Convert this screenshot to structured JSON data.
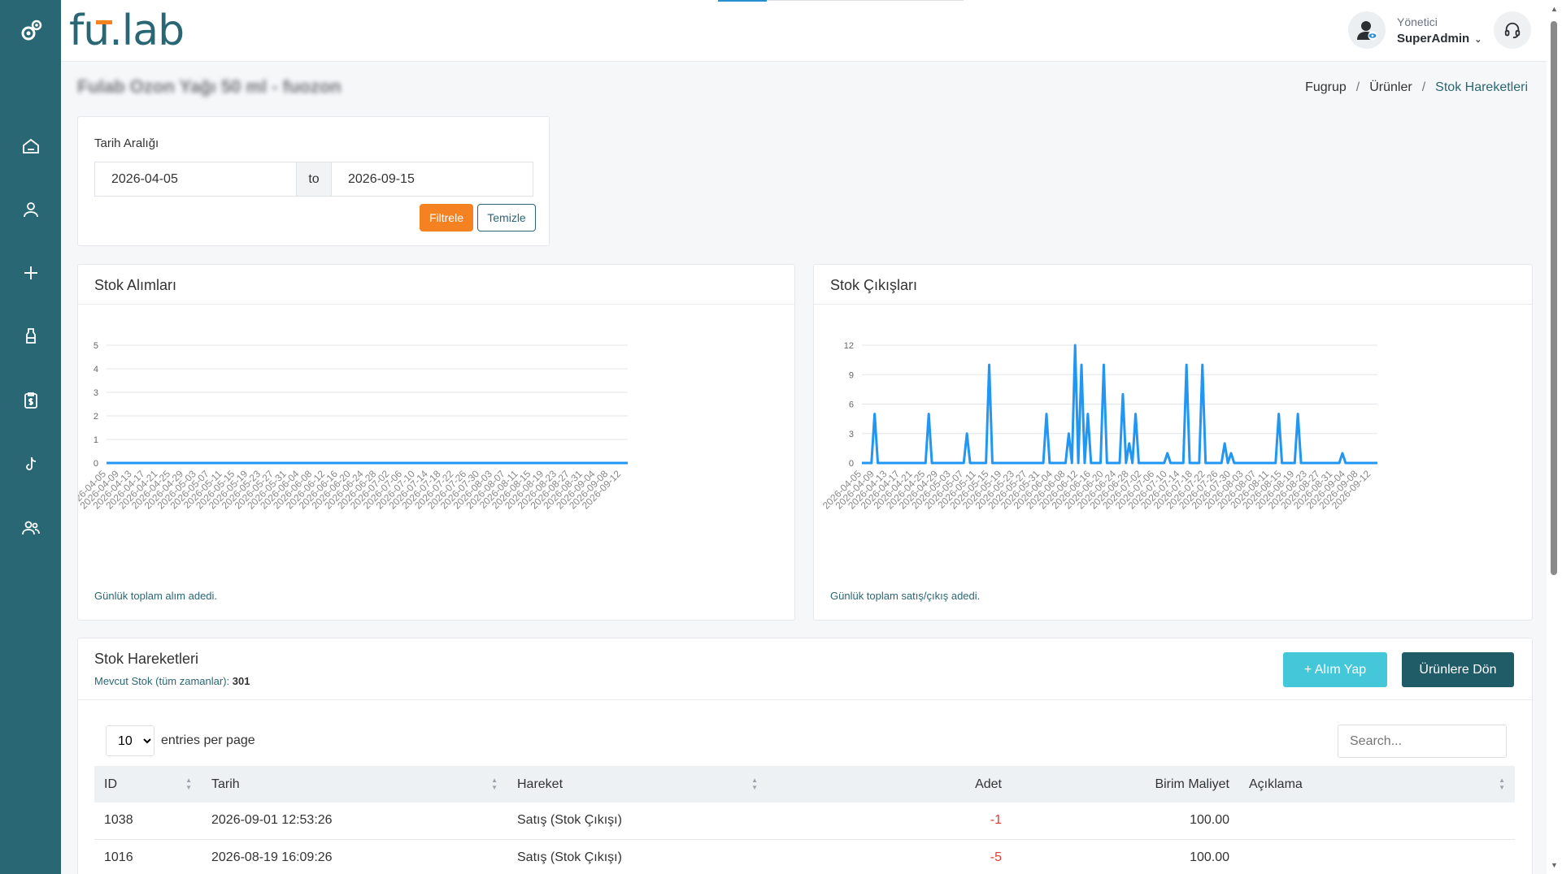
{
  "brand": {
    "text_a": "fu",
    "text_b": ".lab"
  },
  "user": {
    "role": "Yönetici",
    "name": "SuperAdmin"
  },
  "page": {
    "title": "Fulab Ozon Yağı 50 ml - fuozon"
  },
  "breadcrumb": [
    {
      "label": "Fugrup"
    },
    {
      "label": "Ürünler"
    },
    {
      "label": "Stok Hareketleri"
    }
  ],
  "filter": {
    "label": "Tarih Aralığı",
    "start": "2026-04-05",
    "to": "to",
    "end": "2026-09-15",
    "filter_btn": "Filtrele",
    "clear_btn": "Temizle"
  },
  "charts": {
    "left": {
      "title": "Stok Alımları",
      "note": "Günlük toplam alım adedi."
    },
    "right": {
      "title": "Stok Çıkışları",
      "note": "Günlük toplam satış/çıkış adedi."
    }
  },
  "chart_data": [
    {
      "type": "line",
      "title": "Stok Alımları",
      "x_start": "2026-04-05",
      "x_end": "2026-09-14",
      "x_tick_labels": [
        "2026-04-05",
        "2026-04-09",
        "2026-04-13",
        "2026-04-17",
        "2026-04-21",
        "2026-04-25",
        "2026-04-29",
        "2026-05-03",
        "2026-05-07",
        "2026-05-11",
        "2026-05-15",
        "2026-05-19",
        "2026-05-23",
        "2026-05-27",
        "2026-05-31",
        "2026-06-04",
        "2026-06-08",
        "2026-06-12",
        "2026-06-16",
        "2026-06-20",
        "2026-06-24",
        "2026-06-28",
        "2026-07-02",
        "2026-07-06",
        "2026-07-10",
        "2026-07-14",
        "2026-07-18",
        "2026-07-22",
        "2026-07-26",
        "2026-07-30",
        "2026-08-03",
        "2026-08-07",
        "2026-08-11",
        "2026-08-15",
        "2026-08-19",
        "2026-08-23",
        "2026-08-27",
        "2026-08-31",
        "2026-09-04",
        "2026-09-08",
        "2026-09-12"
      ],
      "y_ticks": [
        0,
        1,
        2,
        3,
        4,
        5
      ],
      "ylim": [
        0,
        5
      ],
      "points": [],
      "color": "#2196f3"
    },
    {
      "type": "line",
      "title": "Stok Çıkışları",
      "x_start": "2026-04-05",
      "x_end": "2026-09-14",
      "x_tick_labels": [
        "2026-04-05",
        "2026-04-09",
        "2026-04-13",
        "2026-04-17",
        "2026-04-21",
        "2026-04-25",
        "2026-04-29",
        "2026-05-03",
        "2026-05-07",
        "2026-05-11",
        "2026-05-15",
        "2026-05-19",
        "2026-05-23",
        "2026-05-27",
        "2026-05-31",
        "2026-06-04",
        "2026-06-08",
        "2026-06-12",
        "2026-06-16",
        "2026-06-20",
        "2026-06-24",
        "2026-06-28",
        "2026-07-02",
        "2026-07-06",
        "2026-07-10",
        "2026-07-14",
        "2026-07-18",
        "2026-07-22",
        "2026-07-26",
        "2026-07-30",
        "2026-08-03",
        "2026-08-07",
        "2026-08-11",
        "2026-08-15",
        "2026-08-19",
        "2026-08-23",
        "2026-08-27",
        "2026-08-31",
        "2026-09-04",
        "2026-09-08",
        "2026-09-12"
      ],
      "y_ticks": [
        0,
        3,
        6,
        9,
        12
      ],
      "ylim": [
        0,
        12
      ],
      "points": [
        [
          "2026-04-09",
          5
        ],
        [
          "2026-04-26",
          5
        ],
        [
          "2026-05-08",
          3
        ],
        [
          "2026-05-15",
          10
        ],
        [
          "2026-06-02",
          5
        ],
        [
          "2026-06-09",
          3
        ],
        [
          "2026-06-11",
          12
        ],
        [
          "2026-06-13",
          10
        ],
        [
          "2026-06-15",
          5
        ],
        [
          "2026-06-20",
          10
        ],
        [
          "2026-06-26",
          7
        ],
        [
          "2026-06-28",
          2
        ],
        [
          "2026-06-30",
          5
        ],
        [
          "2026-07-10",
          1
        ],
        [
          "2026-07-16",
          10
        ],
        [
          "2026-07-21",
          10
        ],
        [
          "2026-07-28",
          2
        ],
        [
          "2026-07-30",
          1
        ],
        [
          "2026-08-14",
          5
        ],
        [
          "2026-08-20",
          5
        ],
        [
          "2026-09-03",
          1
        ]
      ],
      "color": "#2196f3"
    }
  ],
  "movements": {
    "title": "Stok Hareketleri",
    "stock_label": "Mevcut Stok (tüm zamanlar):",
    "stock_value": "301",
    "alim_btn": "+ Alım Yap",
    "back_btn": "Ürünlere Dön",
    "entries_value": "10",
    "entries_label": "entries per page",
    "search_placeholder": "Search...",
    "columns": [
      "ID",
      "Tarih",
      "Hareket",
      "Adet",
      "Birim Maliyet",
      "Açıklama"
    ],
    "rows": [
      {
        "id": "1038",
        "date": "2026-09-01 12:53:26",
        "type": "Satış (Stok Çıkışı)",
        "qty": "-1",
        "cost": "100.00",
        "desc": ""
      },
      {
        "id": "1016",
        "date": "2026-08-19 16:09:26",
        "type": "Satış (Stok Çıkışı)",
        "qty": "-5",
        "cost": "100.00",
        "desc": ""
      }
    ]
  }
}
